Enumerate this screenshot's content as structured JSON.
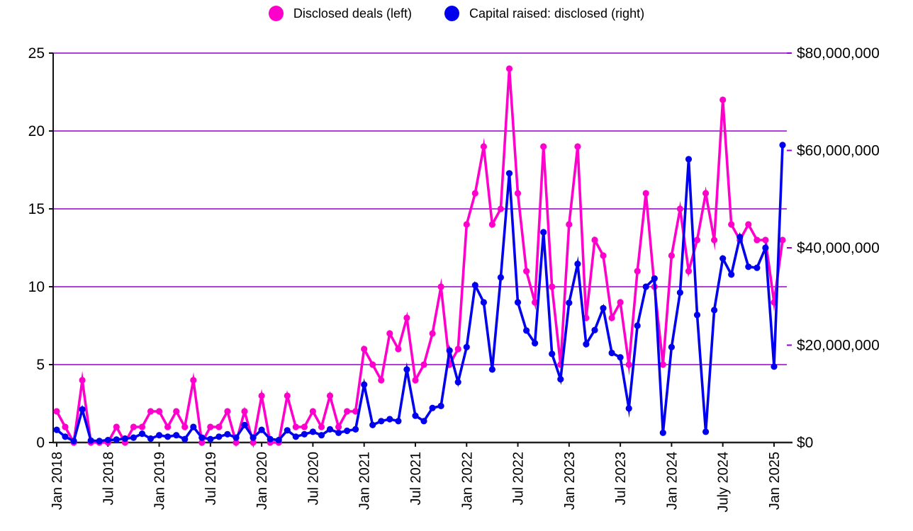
{
  "legend": {
    "items": [
      {
        "label": "Disclosed deals (left)",
        "color": "#ff00cc"
      },
      {
        "label": "Capital raised: disclosed (right)",
        "color": "#0000ee"
      }
    ]
  },
  "chart_data": {
    "type": "line",
    "title": "",
    "n_points": 86,
    "start_month": "Jan 2018",
    "end_month": "Feb 2025",
    "x_tick_every": 6,
    "x_tick_labels": [
      "Jan 2018",
      "Jul 2018",
      "Jan 2019",
      "Jul 2019",
      "Jan 2020",
      "Jul 2020",
      "Jan 2021",
      "Jul 2021",
      "Jan 2022",
      "Jul 2022",
      "Jan 2023",
      "Jul 2023",
      "Jan 2024",
      "July 2024",
      "Jan 2025"
    ],
    "left_axis": {
      "ticks": [
        "0",
        "5",
        "10",
        "15",
        "20",
        "25"
      ],
      "min": 0,
      "max": 25
    },
    "right_axis": {
      "ticks": [
        "$0",
        "$20,000,000",
        "$40,000,000",
        "$60,000,000",
        "$80,000,000"
      ],
      "min": 0,
      "max": 80000000
    },
    "grid": "horizontal",
    "legend_position": "top-center",
    "colors": {
      "grid": "#9900cc",
      "axis": "#222222",
      "deals": "#ff00cc",
      "capital": "#0000ee"
    },
    "series": [
      {
        "name": "Disclosed deals (left)",
        "axis": "left",
        "color": "#ff00cc",
        "values": [
          2,
          1,
          0,
          4,
          0,
          0,
          0,
          1,
          0,
          1,
          1,
          2,
          2,
          1,
          2,
          1,
          4,
          0,
          1,
          1,
          2,
          0,
          2,
          0,
          3,
          0,
          0,
          3,
          1,
          1,
          2,
          1,
          3,
          1,
          2,
          2,
          6,
          5,
          4,
          7,
          6,
          8,
          4,
          5,
          7,
          10,
          5,
          6,
          14,
          16,
          19,
          14,
          15,
          24,
          16,
          11,
          9,
          19,
          10,
          5,
          14,
          19,
          8,
          13,
          12,
          8,
          9,
          5,
          11,
          16,
          10,
          5,
          12,
          15,
          11,
          13,
          16,
          13,
          22,
          14,
          13,
          14,
          13,
          13,
          9,
          13
        ]
      },
      {
        "name": "Capital raised: disclosed (right)",
        "axis": "right",
        "color": "#0000ee",
        "values": [
          2600000,
          1200000,
          300000,
          6800000,
          400000,
          300000,
          500000,
          600000,
          800000,
          1000000,
          1800000,
          800000,
          1500000,
          1200000,
          1500000,
          700000,
          3200000,
          1000000,
          700000,
          1200000,
          1700000,
          1000000,
          3600000,
          1000000,
          2600000,
          700000,
          500000,
          2500000,
          1200000,
          1700000,
          2200000,
          1500000,
          2700000,
          2000000,
          2400000,
          2700000,
          11900000,
          3600000,
          4400000,
          4800000,
          4400000,
          15000000,
          5500000,
          4400000,
          7100000,
          7500000,
          18900000,
          12400000,
          19600000,
          32300000,
          28800000,
          15000000,
          33900000,
          55300000,
          28800000,
          23000000,
          20400000,
          43200000,
          18200000,
          13000000,
          28700000,
          36700000,
          20200000,
          23100000,
          27600000,
          18400000,
          17500000,
          7000000,
          24000000,
          32000000,
          33700000,
          2000000,
          19600000,
          30800000,
          58200000,
          26200000,
          2200000,
          27200000,
          37800000,
          34500000,
          42200000,
          36100000,
          35900000,
          40000000,
          15600000,
          61100000
        ]
      }
    ]
  }
}
